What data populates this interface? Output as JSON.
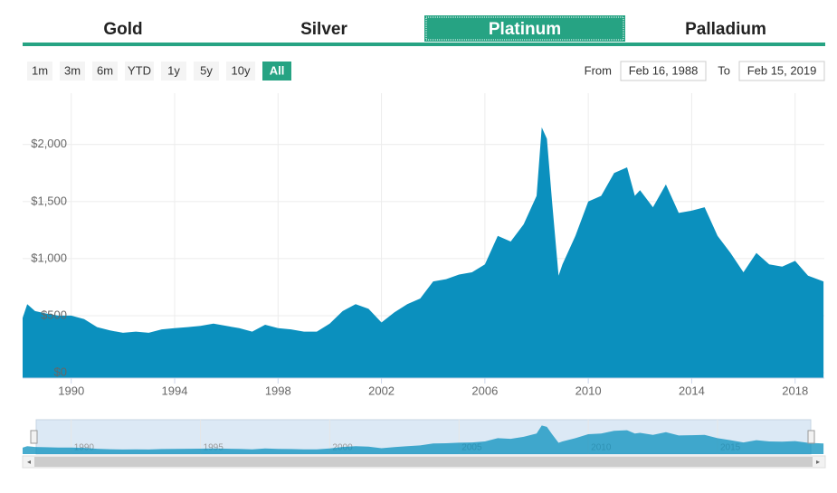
{
  "tabs": [
    "Gold",
    "Silver",
    "Platinum",
    "Palladium"
  ],
  "active_tab": 2,
  "range_buttons": [
    "1m",
    "3m",
    "6m",
    "YTD",
    "1y",
    "5y",
    "10y",
    "All"
  ],
  "active_range": 7,
  "from_label": "From",
  "from_value": "Feb 16, 1988",
  "to_label": "To",
  "to_value": "Feb 15, 2019",
  "chart_data": {
    "type": "area",
    "color": "#0b90be",
    "x": [
      1988.12,
      1988.3,
      1988.6,
      1989,
      1989.5,
      1990,
      1990.5,
      1991,
      1991.5,
      1992,
      1992.5,
      1993,
      1993.5,
      1994,
      1994.5,
      1995,
      1995.5,
      1996,
      1996.5,
      1997,
      1997.5,
      1998,
      1998.5,
      1999,
      1999.5,
      2000,
      2000.5,
      2001,
      2001.5,
      2002,
      2002.5,
      2003,
      2003.5,
      2004,
      2004.5,
      2005,
      2005.5,
      2006,
      2006.5,
      2007,
      2007.5,
      2008,
      2008.2,
      2008.4,
      2008.6,
      2008.85,
      2009,
      2009.5,
      2010,
      2010.5,
      2011,
      2011.5,
      2011.8,
      2012,
      2012.5,
      2013,
      2013.5,
      2014,
      2014.5,
      2015,
      2015.5,
      2016,
      2016.5,
      2017,
      2017.5,
      2018,
      2018.5,
      2019.1
    ],
    "values": [
      480,
      600,
      540,
      520,
      500,
      500,
      470,
      400,
      370,
      350,
      360,
      350,
      380,
      390,
      400,
      410,
      430,
      410,
      390,
      360,
      420,
      390,
      380,
      360,
      360,
      430,
      540,
      600,
      560,
      440,
      530,
      600,
      650,
      800,
      820,
      860,
      880,
      950,
      1200,
      1150,
      1300,
      1550,
      2150,
      2050,
      1500,
      850,
      950,
      1200,
      1500,
      1550,
      1750,
      1800,
      1550,
      1600,
      1450,
      1650,
      1400,
      1420,
      1450,
      1200,
      1050,
      880,
      1050,
      950,
      930,
      980,
      850,
      800
    ],
    "xlim": [
      1988.12,
      2019.13
    ],
    "xticks": [
      1990,
      1994,
      1998,
      2002,
      2006,
      2010,
      2014,
      2018
    ],
    "ylim": [
      0,
      2450
    ],
    "yticks": [
      {
        "value": 0,
        "label": "$0"
      },
      {
        "value": 500,
        "label": "$500"
      },
      {
        "value": 1000,
        "label": "$1,000"
      },
      {
        "value": 1500,
        "label": "$1,500"
      },
      {
        "value": 2000,
        "label": "$2,000"
      }
    ],
    "grid": true,
    "navigator_ticks": [
      1990,
      1995,
      2000,
      2005,
      2010,
      2015
    ]
  }
}
